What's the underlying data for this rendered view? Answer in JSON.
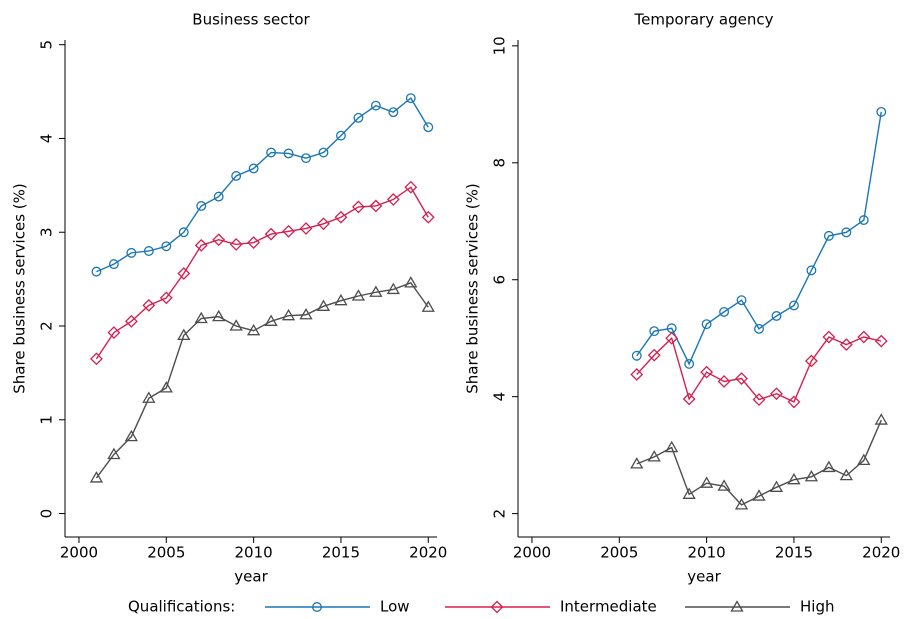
{
  "legend": {
    "title": "Qualifications:"
  },
  "chart_data": [
    {
      "type": "line",
      "title": "Business sector",
      "x_label": "year",
      "y_label": "Share business services (%)",
      "x": [
        2001,
        2002,
        2003,
        2004,
        2005,
        2006,
        2007,
        2008,
        2009,
        2010,
        2011,
        2012,
        2013,
        2014,
        2015,
        2016,
        2017,
        2018,
        2019,
        2020
      ],
      "xlim": [
        1999.2,
        2020.5
      ],
      "xticks": [
        2000,
        2005,
        2010,
        2015,
        2020
      ],
      "ylim": [
        -0.25,
        5.05
      ],
      "yticks": [
        0,
        1,
        2,
        3,
        4,
        5
      ],
      "series": [
        {
          "name": "Low",
          "color": "#1a76b5",
          "marker": "circle",
          "values": [
            2.58,
            2.66,
            2.78,
            2.8,
            2.85,
            3.0,
            3.28,
            3.38,
            3.6,
            3.68,
            3.85,
            3.84,
            3.79,
            3.85,
            4.03,
            4.22,
            4.35,
            4.28,
            4.43,
            4.12
          ]
        },
        {
          "name": "Intermediate",
          "color": "#d6204f",
          "marker": "diamond",
          "values": [
            1.65,
            1.93,
            2.05,
            2.22,
            2.3,
            2.56,
            2.86,
            2.92,
            2.87,
            2.89,
            2.98,
            3.01,
            3.04,
            3.09,
            3.16,
            3.27,
            3.28,
            3.35,
            3.48,
            3.16
          ]
        },
        {
          "name": "High",
          "color": "#4d4d4d",
          "marker": "triangle",
          "values": [
            0.38,
            0.63,
            0.82,
            1.23,
            1.34,
            1.9,
            2.08,
            2.1,
            2.0,
            1.95,
            2.05,
            2.11,
            2.12,
            2.21,
            2.27,
            2.32,
            2.36,
            2.39,
            2.46,
            2.2
          ]
        }
      ]
    },
    {
      "type": "line",
      "title": "Temporary agency",
      "x_label": "year",
      "y_label": "Share business services (%)",
      "x": [
        2006,
        2007,
        2008,
        2009,
        2010,
        2011,
        2012,
        2013,
        2014,
        2015,
        2016,
        2017,
        2018,
        2019,
        2020
      ],
      "xlim": [
        1999.2,
        2020.5
      ],
      "xticks": [
        2000,
        2005,
        2010,
        2015,
        2020
      ],
      "ylim": [
        1.6,
        10.1
      ],
      "yticks": [
        2,
        4,
        6,
        8,
        10
      ],
      "series": [
        {
          "name": "Low",
          "color": "#1a76b5",
          "marker": "circle",
          "values": [
            4.7,
            5.12,
            5.17,
            4.56,
            5.24,
            5.45,
            5.65,
            5.16,
            5.38,
            5.56,
            6.16,
            6.75,
            6.81,
            7.02,
            8.87
          ]
        },
        {
          "name": "Intermediate",
          "color": "#d6204f",
          "marker": "diamond",
          "values": [
            4.38,
            4.71,
            5.0,
            3.96,
            4.42,
            4.26,
            4.31,
            3.95,
            4.05,
            3.91,
            4.61,
            5.02,
            4.89,
            5.02,
            4.95
          ]
        },
        {
          "name": "High",
          "color": "#4d4d4d",
          "marker": "triangle",
          "values": [
            2.85,
            2.97,
            3.13,
            2.33,
            2.52,
            2.47,
            2.15,
            2.3,
            2.45,
            2.58,
            2.63,
            2.79,
            2.65,
            2.91,
            3.6
          ]
        }
      ]
    }
  ]
}
